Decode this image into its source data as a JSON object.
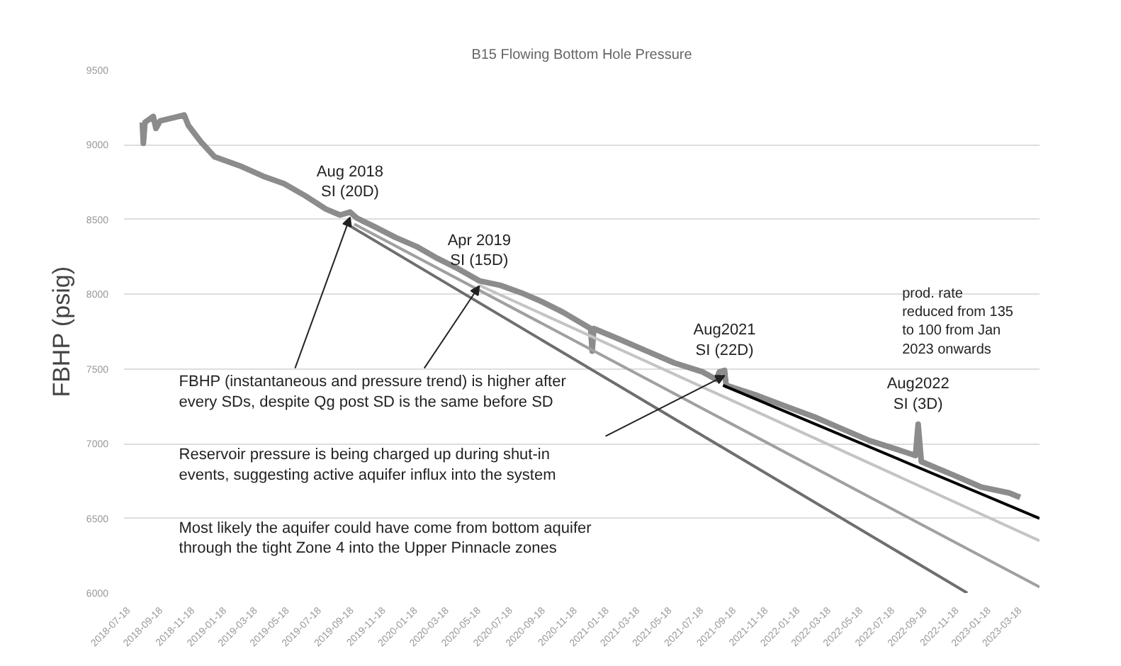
{
  "chart_data": {
    "type": "line",
    "title": "B15 Flowing Bottom Hole Pressure",
    "ylabel": "FBHP (psig)",
    "xlim": [
      "2018-07-10",
      "2023-04-25"
    ],
    "ylim": [
      6000,
      9500
    ],
    "xticks": [
      "2018-07-18",
      "2018-09-18",
      "2018-11-18",
      "2019-01-18",
      "2019-03-18",
      "2019-05-18",
      "2019-07-18",
      "2019-09-18",
      "2019-11-18",
      "2020-01-18",
      "2020-03-18",
      "2020-05-18",
      "2020-07-18",
      "2020-09-18",
      "2020-11-18",
      "2021-01-18",
      "2021-03-18",
      "2021-05-18",
      "2021-07-18",
      "2021-09-18",
      "2021-11-18",
      "2022-01-18",
      "2022-03-18",
      "2022-05-18",
      "2022-07-18",
      "2022-09-18",
      "2022-11-18",
      "2023-01-18",
      "2023-03-18"
    ],
    "yticks": [
      6000,
      6500,
      7000,
      7500,
      8000,
      8500,
      9000,
      9500
    ],
    "grid": "y",
    "line_style": "solid",
    "series": [
      {
        "color": "#8c8c8c",
        "x": [
          "2018-08-14",
          "2018-08-16",
          "2018-08-19",
          "2018-09-04",
          "2018-09-09",
          "2018-09-17",
          "2018-10-11",
          "2018-11-02",
          "2018-11-10",
          "2018-12-04",
          "2018-12-30",
          "2019-02-16",
          "2019-04-02",
          "2019-05-12",
          "2019-06-21",
          "2019-07-31",
          "2019-08-27",
          "2019-09-15",
          "2019-09-28",
          "2019-11-02",
          "2019-12-11",
          "2020-01-20",
          "2020-02-29",
          "2020-04-09",
          "2020-05-19",
          "2020-06-28",
          "2020-08-07",
          "2020-09-16",
          "2020-10-26",
          "2020-12-18",
          "2020-12-21",
          "2020-12-24",
          "2021-02-10",
          "2021-04-04",
          "2021-05-27",
          "2021-07-20",
          "2021-08-15",
          "2021-08-21",
          "2021-08-31",
          "2021-09-03",
          "2021-11-03",
          "2021-12-26",
          "2022-02-18",
          "2022-04-12",
          "2022-06-04",
          "2022-07-28",
          "2022-08-31",
          "2022-09-05",
          "2022-09-11",
          "2022-11-11",
          "2023-01-03",
          "2023-02-26",
          "2023-03-19"
        ],
        "values": [
          9150,
          9010,
          9150,
          9190,
          9110,
          9160,
          9180,
          9200,
          9130,
          9020,
          8920,
          8860,
          8790,
          8740,
          8660,
          8570,
          8530,
          8550,
          8510,
          8450,
          8380,
          8320,
          8240,
          8170,
          8090,
          8060,
          8010,
          7950,
          7880,
          7770,
          7620,
          7770,
          7700,
          7620,
          7540,
          7480,
          7430,
          7480,
          7490,
          7390,
          7320,
          7250,
          7180,
          7100,
          7020,
          6960,
          6920,
          7130,
          6880,
          6790,
          6710,
          6670,
          6640
        ]
      },
      {
        "color": "#6e6e6e",
        "x": [
          "2019-09-04",
          "2022-12-08"
        ],
        "values": [
          8480,
          6000
        ]
      },
      {
        "color": "#a0a0a0",
        "x": [
          "2019-09-23",
          "2023-04-25"
        ],
        "values": [
          8470,
          6040
        ]
      },
      {
        "color": "#c4c4c4",
        "x": [
          "2020-05-19",
          "2023-04-25"
        ],
        "values": [
          8060,
          6350
        ]
      },
      {
        "color": "#000000",
        "x": [
          "2021-08-28",
          "2023-04-25"
        ],
        "values": [
          7390,
          6500
        ]
      }
    ],
    "annotations": [
      {
        "text": "Aug 2018\nSI (20D)",
        "x": "2019-09-15",
        "y": 8550
      },
      {
        "text": "Apr 2019\nSI (15D)",
        "x": "2020-05-19",
        "y": 8090
      },
      {
        "text": "Aug2021\nSI (22D)",
        "x": "2021-08-31",
        "y": 7490
      },
      {
        "text": "Aug2022\nSI (3D)",
        "x": "2022-09-05",
        "y": 7130
      },
      {
        "text": "FBHP (instantaneous and pressure trend) is higher after\nevery SDs, despite Qg post SD is the same before SD",
        "x": "2019-09-15",
        "y": 8550
      },
      "Reservoir pressure is being charged up during shut-in\nevents, suggesting active aquifer influx into the system",
      "Most likely the aquifer could have come from bottom aquifer\nthrough the tight Zone 4 into the Upper Pinnacle zones",
      "prod. rate\nreduced from 135\nto 100 from Jan\n2023 onwards"
    ]
  }
}
